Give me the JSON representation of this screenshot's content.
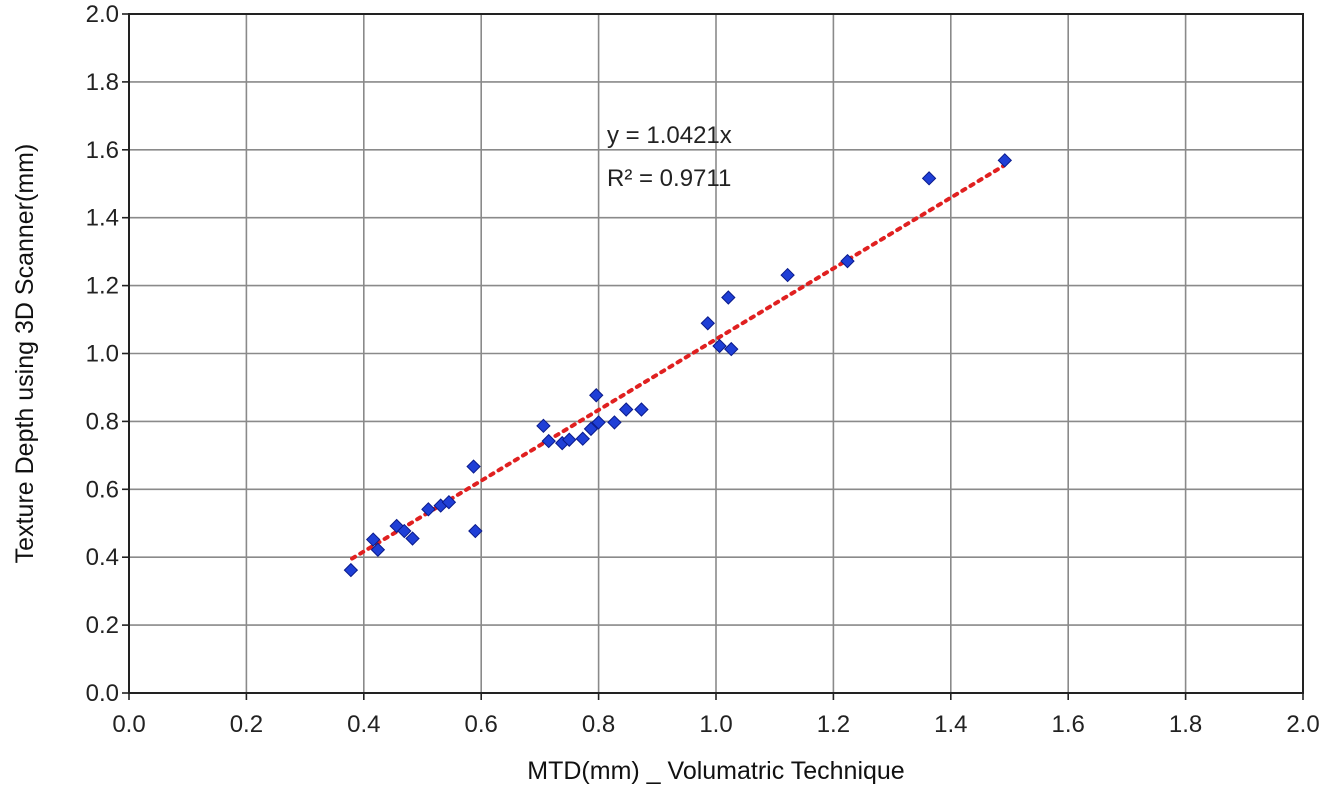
{
  "chart_data": {
    "type": "scatter",
    "title": "",
    "xlabel": "MTD(mm) _ Volumatric Technique",
    "ylabel": "Texture Depth using 3D Scanner(mm)",
    "xlim": [
      0,
      2
    ],
    "ylim": [
      0,
      2
    ],
    "x_ticks": [
      "0.0",
      "0.2",
      "0.4",
      "0.6",
      "0.8",
      "1.0",
      "1.2",
      "1.4",
      "1.6",
      "1.8",
      "2.0"
    ],
    "y_ticks": [
      "0.0",
      "0.2",
      "0.4",
      "0.6",
      "0.8",
      "1.0",
      "1.2",
      "1.4",
      "1.6",
      "1.8",
      "2.0"
    ],
    "grid": true,
    "legend": "none",
    "marker": "diamond",
    "marker_color": "#1f3fd6",
    "trendline_color": "#e02020",
    "trendline": {
      "type": "linear-through-origin",
      "slope": 1.0421,
      "x_range": [
        0.38,
        1.49
      ],
      "equation": "y = 1.0421x",
      "r_squared": "R² = 0.9711"
    },
    "points": [
      {
        "x": 0.378,
        "y": 0.362
      },
      {
        "x": 0.416,
        "y": 0.452
      },
      {
        "x": 0.424,
        "y": 0.422
      },
      {
        "x": 0.456,
        "y": 0.492
      },
      {
        "x": 0.469,
        "y": 0.477
      },
      {
        "x": 0.483,
        "y": 0.455
      },
      {
        "x": 0.51,
        "y": 0.541
      },
      {
        "x": 0.531,
        "y": 0.552
      },
      {
        "x": 0.545,
        "y": 0.562
      },
      {
        "x": 0.587,
        "y": 0.667
      },
      {
        "x": 0.59,
        "y": 0.477
      },
      {
        "x": 0.706,
        "y": 0.787
      },
      {
        "x": 0.715,
        "y": 0.742
      },
      {
        "x": 0.738,
        "y": 0.736
      },
      {
        "x": 0.75,
        "y": 0.746
      },
      {
        "x": 0.773,
        "y": 0.749
      },
      {
        "x": 0.787,
        "y": 0.778
      },
      {
        "x": 0.796,
        "y": 0.877
      },
      {
        "x": 0.8,
        "y": 0.797
      },
      {
        "x": 0.827,
        "y": 0.797
      },
      {
        "x": 0.847,
        "y": 0.835
      },
      {
        "x": 0.873,
        "y": 0.835
      },
      {
        "x": 0.986,
        "y": 1.089
      },
      {
        "x": 1.006,
        "y": 1.022
      },
      {
        "x": 1.021,
        "y": 1.165
      },
      {
        "x": 1.026,
        "y": 1.013
      },
      {
        "x": 1.122,
        "y": 1.231
      },
      {
        "x": 1.224,
        "y": 1.272
      },
      {
        "x": 1.363,
        "y": 1.516
      },
      {
        "x": 1.492,
        "y": 1.569
      }
    ]
  }
}
